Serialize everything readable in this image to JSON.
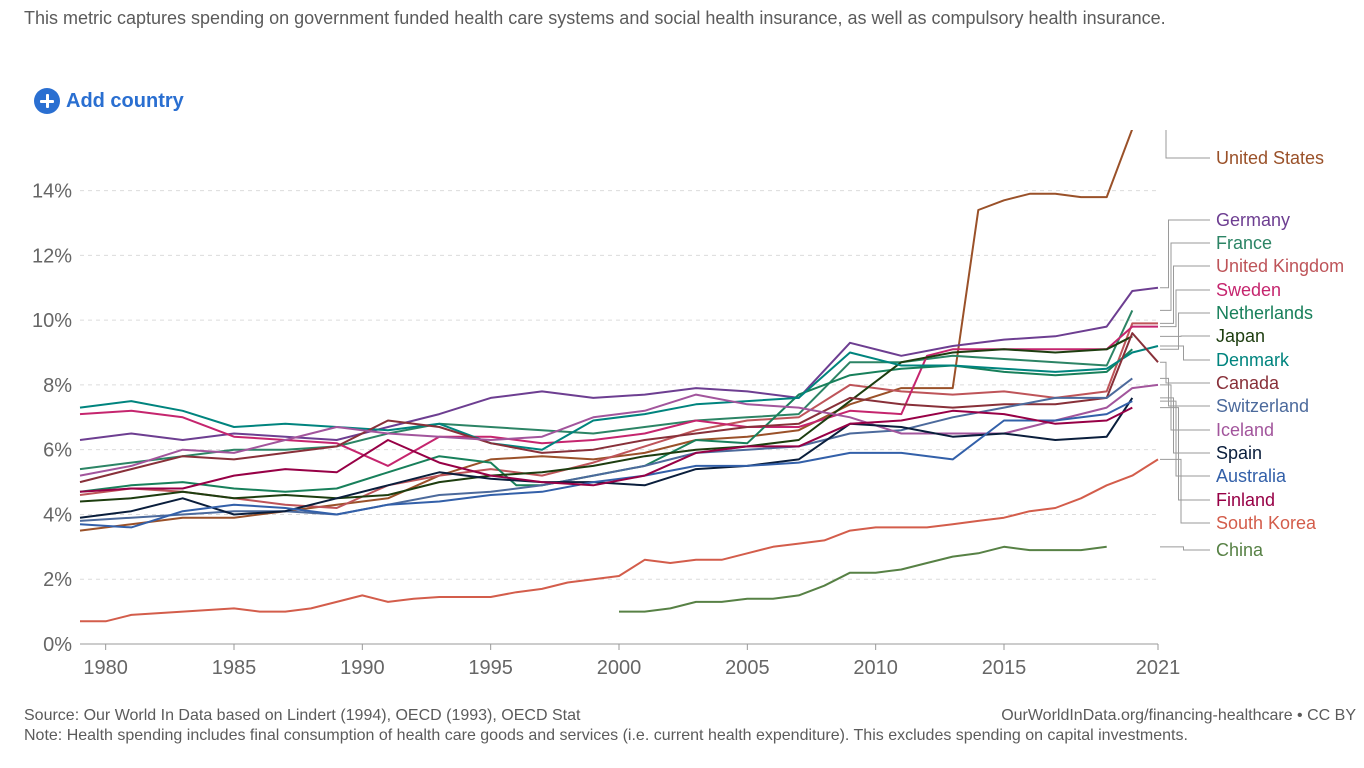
{
  "subtitle": "This metric captures spending on government funded health care systems and social health insurance, as well as compulsory health insurance.",
  "add_country": {
    "label": "Add country",
    "icon": "plus-circle-icon"
  },
  "footer": {
    "source": "Source: Our World In Data based on Lindert (1994), OECD (1993), OECD Stat",
    "attribution": "OurWorldInData.org/financing-healthcare • CC BY",
    "note": "Note: Health spending includes final consumption of health care goods and services (i.e. current health expenditure). This excludes spending on capital investments."
  },
  "chart_data": {
    "type": "line",
    "title": "",
    "xlabel": "",
    "ylabel": "",
    "xlim": [
      1979,
      2021
    ],
    "ylim": [
      0,
      15.5
    ],
    "x_ticks": [
      1980,
      1985,
      1990,
      1995,
      2000,
      2005,
      2010,
      2015,
      2021
    ],
    "x_tick_labels": [
      "1980",
      "1985",
      "1990",
      "1995",
      "2000",
      "2005",
      "2010",
      "2015",
      "2021"
    ],
    "y_ticks": [
      0,
      2,
      4,
      6,
      8,
      10,
      12,
      14
    ],
    "y_tick_labels": [
      "0%",
      "2%",
      "4%",
      "6%",
      "8%",
      "10%",
      "12%",
      "14%"
    ],
    "grid": true,
    "series": [
      {
        "name": "United States",
        "color": "#9a5129",
        "x": [
          1979,
          1981,
          1983,
          1985,
          1987,
          1989,
          1991,
          1993,
          1995,
          1997,
          1999,
          2001,
          2003,
          2005,
          2007,
          2009,
          2011,
          2013,
          2014,
          2015,
          2016,
          2017,
          2018,
          2019,
          2020
        ],
        "values": [
          3.5,
          3.7,
          3.9,
          3.9,
          4.1,
          4.3,
          4.5,
          5.2,
          5.7,
          5.8,
          5.7,
          5.9,
          6.3,
          6.4,
          6.6,
          7.4,
          7.9,
          7.9,
          13.4,
          13.7,
          13.9,
          13.9,
          13.8,
          13.8,
          15.9
        ]
      },
      {
        "name": "Germany",
        "color": "#6d3e91",
        "x": [
          1979,
          1981,
          1983,
          1985,
          1987,
          1989,
          1991,
          1993,
          1995,
          1997,
          1999,
          2001,
          2003,
          2005,
          2007,
          2009,
          2011,
          2013,
          2015,
          2017,
          2019,
          2020,
          2021
        ],
        "values": [
          6.3,
          6.5,
          6.3,
          6.5,
          6.4,
          6.3,
          6.7,
          7.1,
          7.6,
          7.8,
          7.6,
          7.7,
          7.9,
          7.8,
          7.6,
          9.3,
          8.9,
          9.2,
          9.4,
          9.5,
          9.8,
          10.9,
          11.0
        ]
      },
      {
        "name": "France",
        "color": "#2c8465",
        "x": [
          1979,
          1981,
          1983,
          1985,
          1987,
          1989,
          1991,
          1993,
          1995,
          1997,
          1999,
          2001,
          2003,
          2005,
          2007,
          2009,
          2011,
          2013,
          2015,
          2017,
          2019,
          2020
        ],
        "values": [
          5.4,
          5.6,
          5.8,
          6.0,
          6.0,
          6.1,
          6.5,
          6.8,
          6.7,
          6.6,
          6.5,
          6.7,
          6.9,
          7.0,
          7.1,
          8.7,
          8.7,
          8.9,
          8.8,
          8.7,
          8.6,
          10.3
        ]
      },
      {
        "name": "United Kingdom",
        "color": "#be5459",
        "x": [
          1979,
          1981,
          1983,
          1985,
          1987,
          1989,
          1991,
          1993,
          1995,
          1997,
          1999,
          2001,
          2003,
          2005,
          2007,
          2009,
          2011,
          2013,
          2015,
          2017,
          2019,
          2020,
          2021
        ],
        "values": [
          4.6,
          4.8,
          4.7,
          4.5,
          4.3,
          4.2,
          4.9,
          5.2,
          5.4,
          5.2,
          5.6,
          6.1,
          6.6,
          6.9,
          7.0,
          8.0,
          7.8,
          7.7,
          7.8,
          7.6,
          7.8,
          9.9,
          9.9
        ]
      },
      {
        "name": "Sweden",
        "color": "#c5256e",
        "x": [
          1979,
          1981,
          1983,
          1985,
          1987,
          1989,
          1991,
          1993,
          1995,
          1997,
          1999,
          2001,
          2003,
          2005,
          2007,
          2009,
          2011,
          2012,
          2013,
          2015,
          2017,
          2019,
          2020,
          2021
        ],
        "values": [
          7.1,
          7.2,
          7.0,
          6.4,
          6.3,
          6.2,
          5.5,
          6.4,
          6.4,
          6.2,
          6.3,
          6.5,
          6.9,
          6.7,
          6.7,
          7.2,
          7.1,
          8.9,
          9.1,
          9.1,
          9.1,
          9.1,
          9.8,
          9.8
        ]
      },
      {
        "name": "Netherlands",
        "color": "#18805b",
        "x": [
          1979,
          1981,
          1983,
          1985,
          1987,
          1989,
          1991,
          1993,
          1995,
          1996,
          1997,
          1999,
          2001,
          2003,
          2005,
          2007,
          2009,
          2011,
          2013,
          2015,
          2017,
          2019,
          2020
        ],
        "values": [
          4.7,
          4.9,
          5.0,
          4.8,
          4.7,
          4.8,
          5.3,
          5.8,
          5.6,
          4.9,
          4.9,
          5.2,
          5.5,
          6.3,
          6.2,
          7.7,
          8.3,
          8.5,
          8.6,
          8.4,
          8.3,
          8.4,
          9.1
        ]
      },
      {
        "name": "Japan",
        "color": "#1d3d0f",
        "x": [
          1979,
          1981,
          1983,
          1985,
          1987,
          1989,
          1991,
          1993,
          1995,
          1997,
          1999,
          2001,
          2003,
          2005,
          2007,
          2009,
          2011,
          2013,
          2015,
          2017,
          2019,
          2020
        ],
        "values": [
          4.4,
          4.5,
          4.7,
          4.5,
          4.6,
          4.5,
          4.6,
          5.0,
          5.2,
          5.3,
          5.5,
          5.8,
          6.0,
          6.1,
          6.3,
          7.5,
          8.7,
          9.0,
          9.1,
          9.0,
          9.1,
          9.5
        ]
      },
      {
        "name": "Denmark",
        "color": "#00847e",
        "x": [
          1979,
          1981,
          1983,
          1985,
          1987,
          1989,
          1991,
          1993,
          1995,
          1997,
          1999,
          2001,
          2003,
          2005,
          2007,
          2009,
          2011,
          2013,
          2015,
          2017,
          2019,
          2020,
          2021
        ],
        "values": [
          7.3,
          7.5,
          7.2,
          6.7,
          6.8,
          6.7,
          6.6,
          6.8,
          6.2,
          6.0,
          6.9,
          7.1,
          7.4,
          7.5,
          7.6,
          9.0,
          8.6,
          8.6,
          8.5,
          8.4,
          8.5,
          9.0,
          9.2
        ]
      },
      {
        "name": "Canada",
        "color": "#883039",
        "x": [
          1979,
          1981,
          1983,
          1985,
          1987,
          1989,
          1991,
          1993,
          1995,
          1997,
          1999,
          2001,
          2003,
          2005,
          2007,
          2009,
          2011,
          2013,
          2015,
          2017,
          2019,
          2020,
          2021
        ],
        "values": [
          5.0,
          5.4,
          5.8,
          5.7,
          5.9,
          6.1,
          6.9,
          6.7,
          6.2,
          5.9,
          6.0,
          6.3,
          6.5,
          6.7,
          6.8,
          7.6,
          7.4,
          7.3,
          7.4,
          7.4,
          7.6,
          9.6,
          8.7
        ]
      },
      {
        "name": "Switzerland",
        "color": "#4c6a9c",
        "x": [
          1979,
          1981,
          1983,
          1985,
          1987,
          1989,
          1991,
          1993,
          1995,
          1997,
          1999,
          2001,
          2003,
          2005,
          2007,
          2009,
          2011,
          2013,
          2015,
          2017,
          2019,
          2020
        ],
        "values": [
          3.8,
          3.9,
          4.0,
          4.1,
          4.1,
          4.0,
          4.3,
          4.6,
          4.7,
          4.9,
          5.2,
          5.5,
          5.9,
          6.0,
          6.1,
          6.5,
          6.6,
          7.0,
          7.3,
          7.6,
          7.6,
          8.2
        ]
      },
      {
        "name": "Iceland",
        "color": "#a2559c",
        "x": [
          1979,
          1981,
          1983,
          1985,
          1987,
          1989,
          1991,
          1993,
          1995,
          1997,
          1999,
          2001,
          2003,
          2005,
          2007,
          2009,
          2011,
          2013,
          2015,
          2017,
          2019,
          2020,
          2021
        ],
        "values": [
          5.2,
          5.5,
          6.0,
          5.9,
          6.3,
          6.7,
          6.5,
          6.4,
          6.3,
          6.4,
          7.0,
          7.2,
          7.7,
          7.4,
          7.3,
          7.0,
          6.5,
          6.5,
          6.5,
          6.9,
          7.3,
          7.9,
          8.0
        ]
      },
      {
        "name": "Spain",
        "color": "#0a1e3c",
        "x": [
          1979,
          1981,
          1983,
          1985,
          1987,
          1989,
          1991,
          1993,
          1995,
          1997,
          1999,
          2001,
          2003,
          2005,
          2007,
          2009,
          2011,
          2013,
          2015,
          2017,
          2019,
          2020
        ],
        "values": [
          3.9,
          4.1,
          4.5,
          4.0,
          4.1,
          4.5,
          4.9,
          5.3,
          5.1,
          5.0,
          5.0,
          4.9,
          5.4,
          5.5,
          5.7,
          6.8,
          6.7,
          6.4,
          6.5,
          6.3,
          6.4,
          7.6
        ]
      },
      {
        "name": "Australia",
        "color": "#3360a9",
        "x": [
          1979,
          1981,
          1983,
          1985,
          1987,
          1989,
          1991,
          1993,
          1995,
          1997,
          1999,
          2001,
          2003,
          2005,
          2007,
          2009,
          2011,
          2013,
          2015,
          2017,
          2019,
          2020
        ],
        "values": [
          3.7,
          3.6,
          4.1,
          4.3,
          4.2,
          4.0,
          4.3,
          4.4,
          4.6,
          4.7,
          5.0,
          5.2,
          5.5,
          5.5,
          5.6,
          5.9,
          5.9,
          5.7,
          6.9,
          6.9,
          7.1,
          7.5
        ]
      },
      {
        "name": "Finland",
        "color": "#970046",
        "x": [
          1979,
          1981,
          1983,
          1985,
          1987,
          1989,
          1991,
          1993,
          1995,
          1997,
          1999,
          2001,
          2003,
          2005,
          2007,
          2009,
          2011,
          2013,
          2015,
          2017,
          2019,
          2020
        ],
        "values": [
          4.7,
          4.8,
          4.8,
          5.2,
          5.4,
          5.3,
          6.3,
          5.6,
          5.2,
          5.0,
          4.9,
          5.2,
          5.9,
          6.1,
          6.1,
          6.8,
          6.9,
          7.2,
          7.1,
          6.8,
          6.9,
          7.3
        ]
      },
      {
        "name": "South Korea",
        "color": "#d35d4b",
        "x": [
          1979,
          1980,
          1981,
          1982,
          1983,
          1984,
          1985,
          1986,
          1987,
          1988,
          1989,
          1990,
          1991,
          1992,
          1993,
          1994,
          1995,
          1996,
          1997,
          1998,
          1999,
          2000,
          2001,
          2002,
          2003,
          2004,
          2005,
          2006,
          2007,
          2008,
          2009,
          2010,
          2011,
          2012,
          2013,
          2014,
          2015,
          2016,
          2017,
          2018,
          2019,
          2020,
          2021
        ],
        "values": [
          0.7,
          0.7,
          0.9,
          0.95,
          1.0,
          1.05,
          1.1,
          1.0,
          1.0,
          1.1,
          1.3,
          1.5,
          1.3,
          1.4,
          1.45,
          1.45,
          1.45,
          1.6,
          1.7,
          1.9,
          2.0,
          2.1,
          2.6,
          2.5,
          2.6,
          2.6,
          2.8,
          3.0,
          3.1,
          3.2,
          3.5,
          3.6,
          3.6,
          3.6,
          3.7,
          3.8,
          3.9,
          4.1,
          4.2,
          4.5,
          4.9,
          5.2,
          5.7
        ]
      },
      {
        "name": "China",
        "color": "#578145",
        "x": [
          2000,
          2001,
          2002,
          2003,
          2004,
          2005,
          2006,
          2007,
          2008,
          2009,
          2010,
          2011,
          2012,
          2013,
          2014,
          2015,
          2016,
          2017,
          2018,
          2019
        ],
        "values": [
          1.0,
          1.0,
          1.1,
          1.3,
          1.3,
          1.4,
          1.4,
          1.5,
          1.8,
          2.2,
          2.2,
          2.3,
          2.5,
          2.7,
          2.8,
          3.0,
          2.9,
          2.9,
          2.9,
          3.0
        ]
      }
    ]
  }
}
